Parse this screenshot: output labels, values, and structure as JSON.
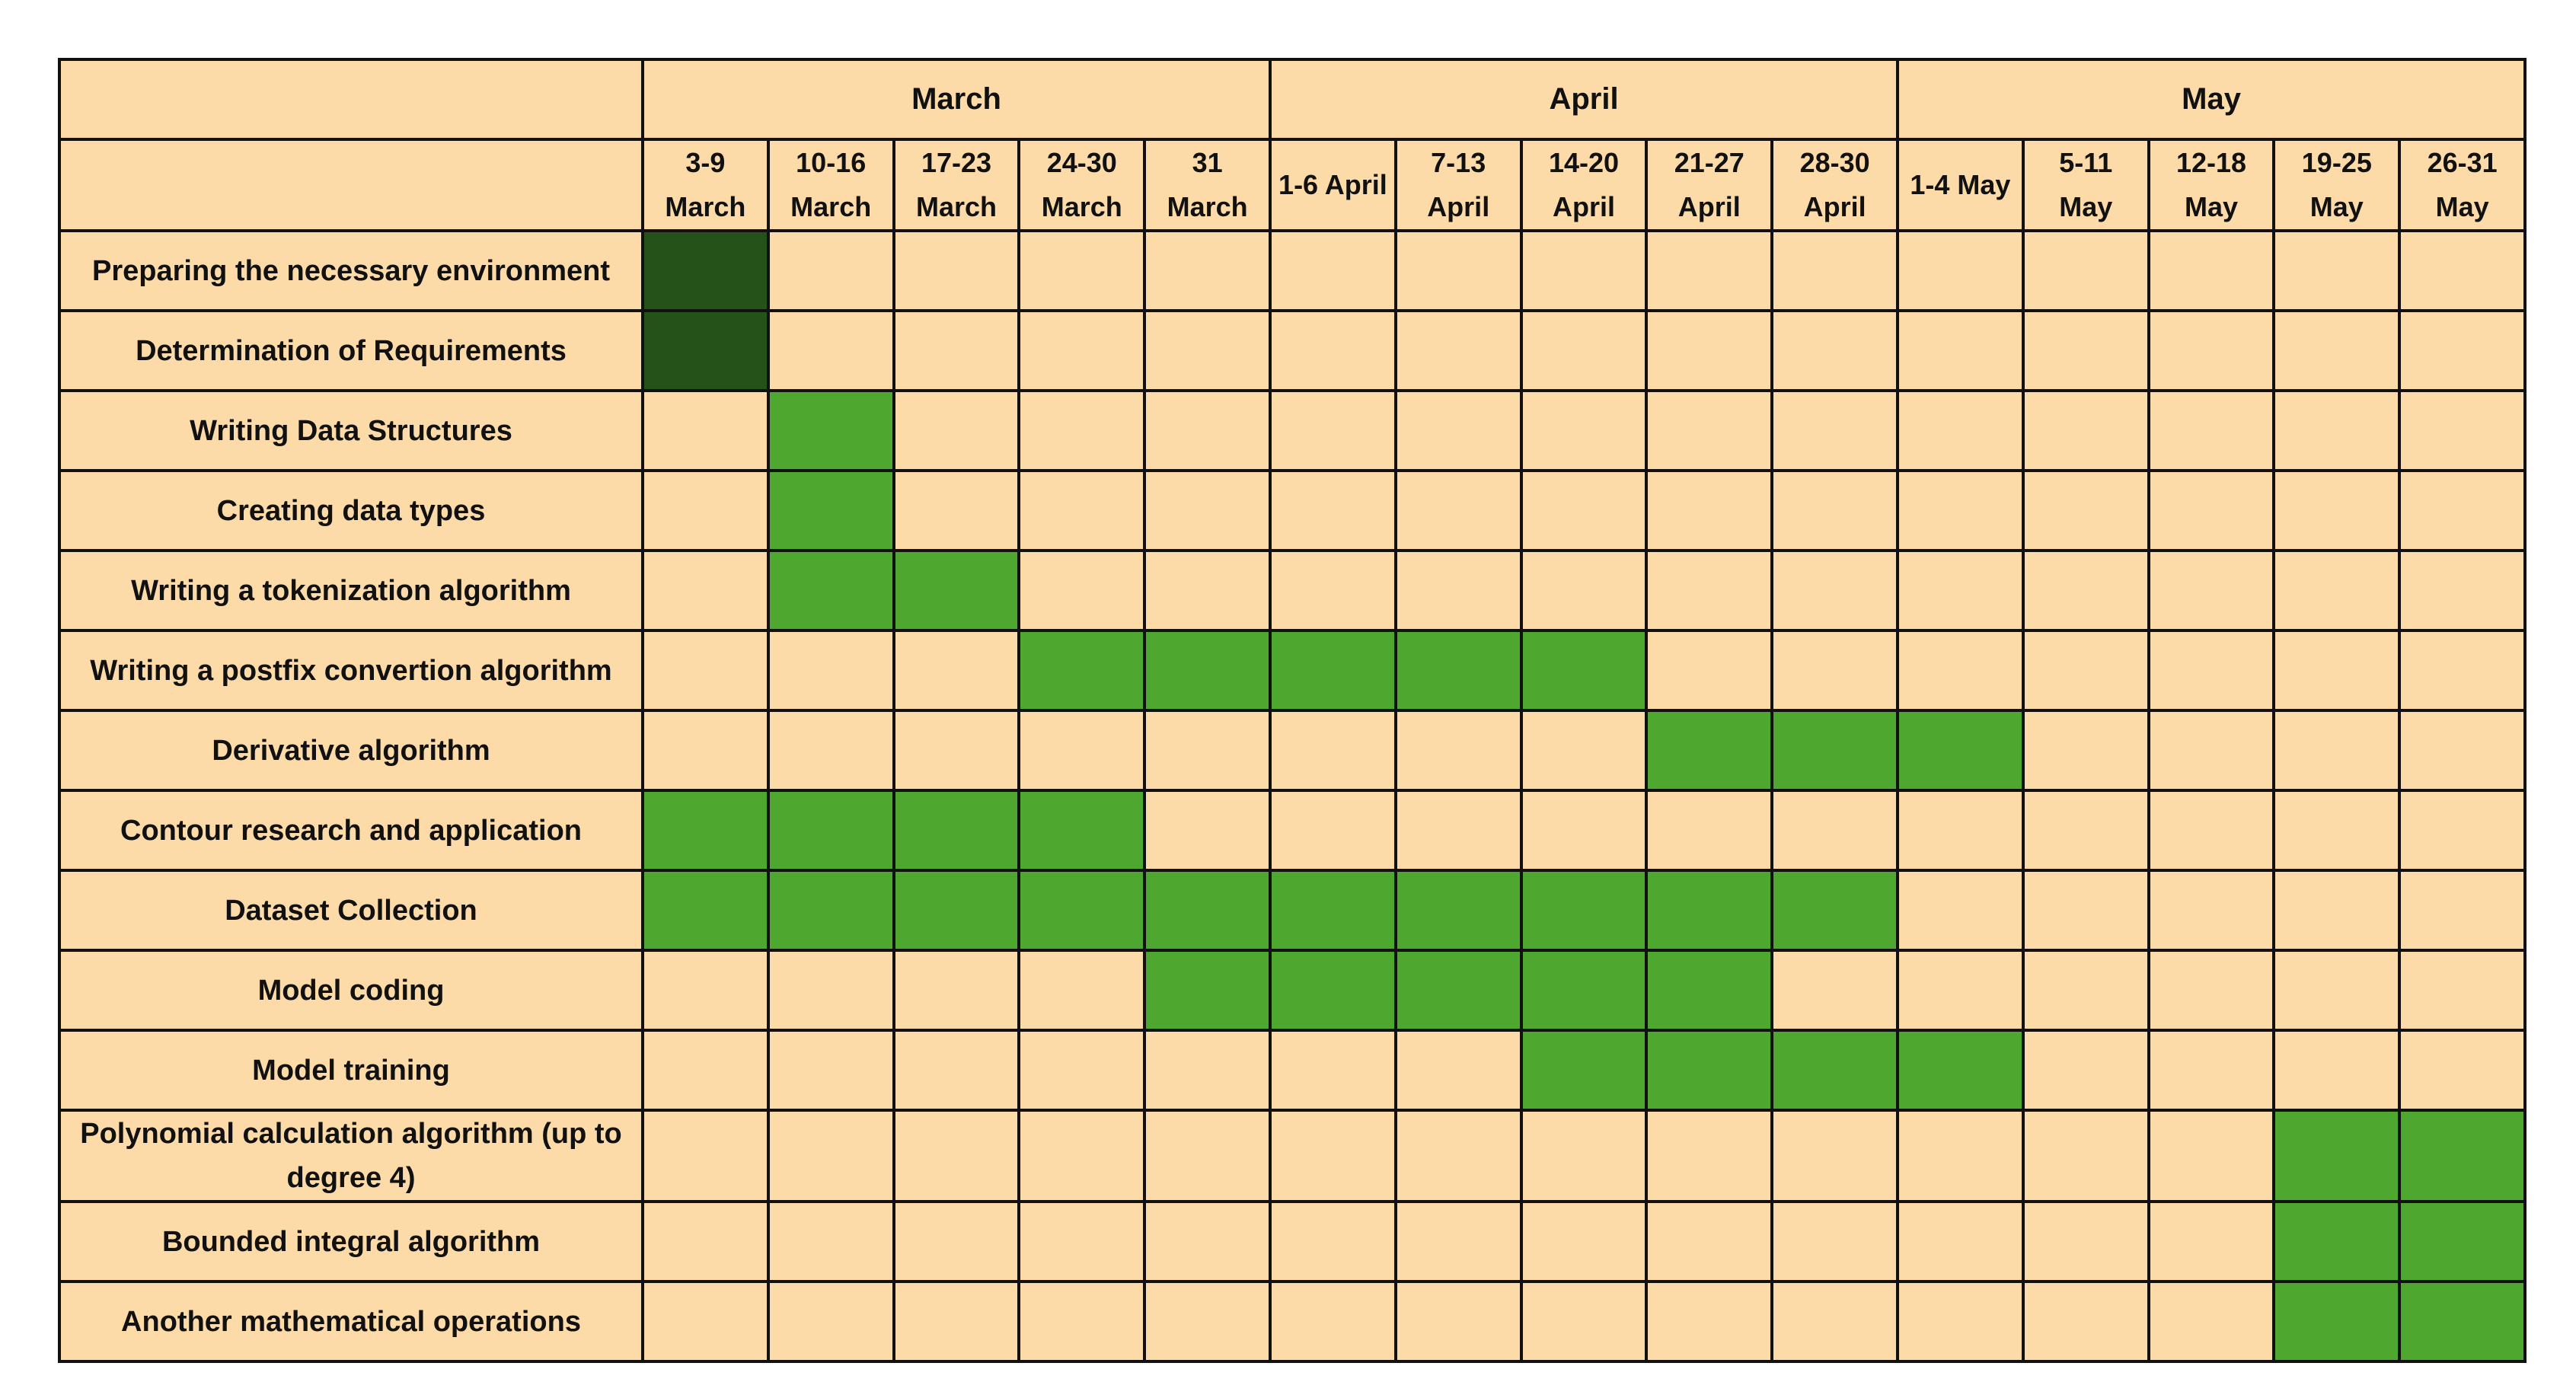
{
  "colors": {
    "background": "#fcdba8",
    "active": "#4ea72e",
    "active_dark": "#245218",
    "border": "#111111",
    "text": "#111111"
  },
  "chart_data": {
    "type": "table",
    "months": [
      {
        "label": "March",
        "span": 5
      },
      {
        "label": "April",
        "span": 5
      },
      {
        "label": "May",
        "span": 5
      }
    ],
    "weeks": [
      "3-9\nMarch",
      "10-16\nMarch",
      "17-23\nMarch",
      "24-30\nMarch",
      "31\nMarch",
      "1-6 April",
      "7-13\nApril",
      "14-20\nApril",
      "21-27\nApril",
      "28-30\nApril",
      "1-4 May",
      "5-11\nMay",
      "12-18\nMay",
      "19-25\nMay",
      "26-31\nMay"
    ],
    "tasks": [
      {
        "name": "Preparing the necessary environment",
        "weeks": [
          0
        ],
        "shade": "dark"
      },
      {
        "name": "Determination of Requirements",
        "weeks": [
          0
        ],
        "shade": "dark"
      },
      {
        "name": "Writing Data Structures",
        "weeks": [
          1
        ],
        "shade": "normal"
      },
      {
        "name": "Creating data types",
        "weeks": [
          1
        ],
        "shade": "normal"
      },
      {
        "name": "Writing a tokenization algorithm",
        "weeks": [
          1,
          2
        ],
        "shade": "normal"
      },
      {
        "name": "Writing a postfix convertion algorithm",
        "weeks": [
          3,
          4,
          5,
          6,
          7
        ],
        "shade": "normal"
      },
      {
        "name": "Derivative algorithm",
        "weeks": [
          8,
          9,
          10
        ],
        "shade": "normal"
      },
      {
        "name": "Contour research and application",
        "weeks": [
          0,
          1,
          2,
          3
        ],
        "shade": "normal"
      },
      {
        "name": "Dataset Collection",
        "weeks": [
          0,
          1,
          2,
          3,
          4,
          5,
          6,
          7,
          8,
          9
        ],
        "shade": "normal"
      },
      {
        "name": "Model coding",
        "weeks": [
          4,
          5,
          6,
          7,
          8
        ],
        "shade": "normal"
      },
      {
        "name": "Model training",
        "weeks": [
          7,
          8,
          9,
          10
        ],
        "shade": "normal"
      },
      {
        "name": "Polynomial calculation algorithm (up to degree 4)",
        "weeks": [
          13,
          14
        ],
        "shade": "normal"
      },
      {
        "name": "Bounded integral algorithm",
        "weeks": [
          13,
          14
        ],
        "shade": "normal"
      },
      {
        "name": "Another mathematical operations",
        "weeks": [
          13,
          14
        ],
        "shade": "normal"
      }
    ]
  }
}
